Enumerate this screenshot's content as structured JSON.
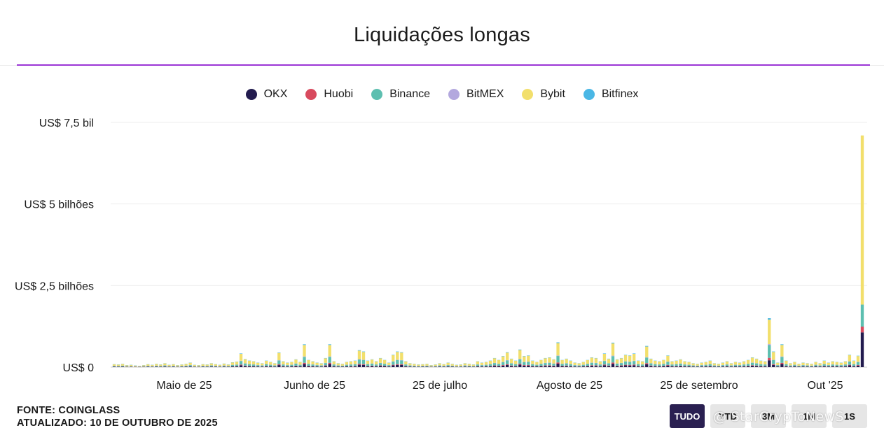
{
  "chart_data": {
    "type": "bar",
    "stacked": true,
    "title": "Liquidações longas",
    "legend_position": "top-center",
    "grid": true,
    "x_tick_labels": [
      "Maio de 25",
      "Junho de 25",
      "25 de julho",
      "Agosto de 25",
      "25 de setembro",
      "Out '25"
    ],
    "y_tick_labels": [
      "US$ 0",
      "US$ 2,5 bilhões",
      "US$ 5 bilhões",
      "US$ 7,5 bil"
    ],
    "y_ticks": [
      0,
      2.5,
      5,
      7.5
    ],
    "ylim": [
      0,
      7.5
    ],
    "y_unit": "bilhões US$",
    "series": [
      {
        "name": "OKX",
        "color": "#231c4f"
      },
      {
        "name": "Huobi",
        "color": "#d84a5e"
      },
      {
        "name": "Binance",
        "color": "#5dbfb0"
      },
      {
        "name": "BitMEX",
        "color": "#b3a8de"
      },
      {
        "name": "Bybit",
        "color": "#f2df6c"
      },
      {
        "name": "Bitfinex",
        "color": "#4ab7e5"
      }
    ],
    "bars": {
      "count": 180,
      "totals": [
        0.09,
        0.08,
        0.1,
        0.06,
        0.07,
        0.05,
        0.04,
        0.06,
        0.09,
        0.07,
        0.1,
        0.08,
        0.12,
        0.07,
        0.09,
        0.06,
        0.08,
        0.1,
        0.14,
        0.07,
        0.06,
        0.09,
        0.08,
        0.12,
        0.09,
        0.07,
        0.11,
        0.08,
        0.15,
        0.17,
        0.42,
        0.25,
        0.2,
        0.18,
        0.14,
        0.12,
        0.2,
        0.16,
        0.12,
        0.45,
        0.18,
        0.14,
        0.16,
        0.24,
        0.16,
        0.7,
        0.22,
        0.18,
        0.14,
        0.12,
        0.28,
        0.7,
        0.18,
        0.12,
        0.1,
        0.16,
        0.18,
        0.2,
        0.52,
        0.48,
        0.2,
        0.24,
        0.18,
        0.28,
        0.22,
        0.14,
        0.38,
        0.48,
        0.46,
        0.18,
        0.12,
        0.1,
        0.08,
        0.09,
        0.1,
        0.06,
        0.08,
        0.12,
        0.09,
        0.14,
        0.1,
        0.07,
        0.08,
        0.12,
        0.1,
        0.08,
        0.18,
        0.14,
        0.16,
        0.2,
        0.28,
        0.22,
        0.34,
        0.46,
        0.26,
        0.2,
        0.54,
        0.34,
        0.36,
        0.2,
        0.16,
        0.22,
        0.28,
        0.3,
        0.24,
        0.76,
        0.22,
        0.26,
        0.2,
        0.14,
        0.12,
        0.16,
        0.22,
        0.3,
        0.28,
        0.18,
        0.42,
        0.26,
        0.75,
        0.24,
        0.28,
        0.38,
        0.36,
        0.42,
        0.2,
        0.18,
        0.65,
        0.26,
        0.2,
        0.18,
        0.22,
        0.36,
        0.18,
        0.2,
        0.24,
        0.18,
        0.16,
        0.12,
        0.1,
        0.14,
        0.16,
        0.2,
        0.12,
        0.1,
        0.14,
        0.18,
        0.12,
        0.16,
        0.14,
        0.18,
        0.22,
        0.3,
        0.26,
        0.2,
        0.18,
        1.5,
        0.48,
        0.14,
        0.7,
        0.2,
        0.12,
        0.16,
        0.1,
        0.14,
        0.12,
        0.1,
        0.16,
        0.12,
        0.2,
        0.14,
        0.18,
        0.16,
        0.14,
        0.18,
        0.38,
        0.2,
        0.35,
        7.1
      ]
    }
  },
  "footer": {
    "source": "FONTE: COINGLASS",
    "updated": "ATUALIZADO: 10 DE OUTUBRO DE 2025"
  },
  "range_buttons": [
    {
      "label": "TUDO",
      "active": true
    },
    {
      "label": "YTD",
      "active": false
    },
    {
      "label": "3M",
      "active": false
    },
    {
      "label": "1M",
      "active": false
    },
    {
      "label": "1S",
      "active": false
    }
  ],
  "watermark": "@ StarCrypToNewS"
}
